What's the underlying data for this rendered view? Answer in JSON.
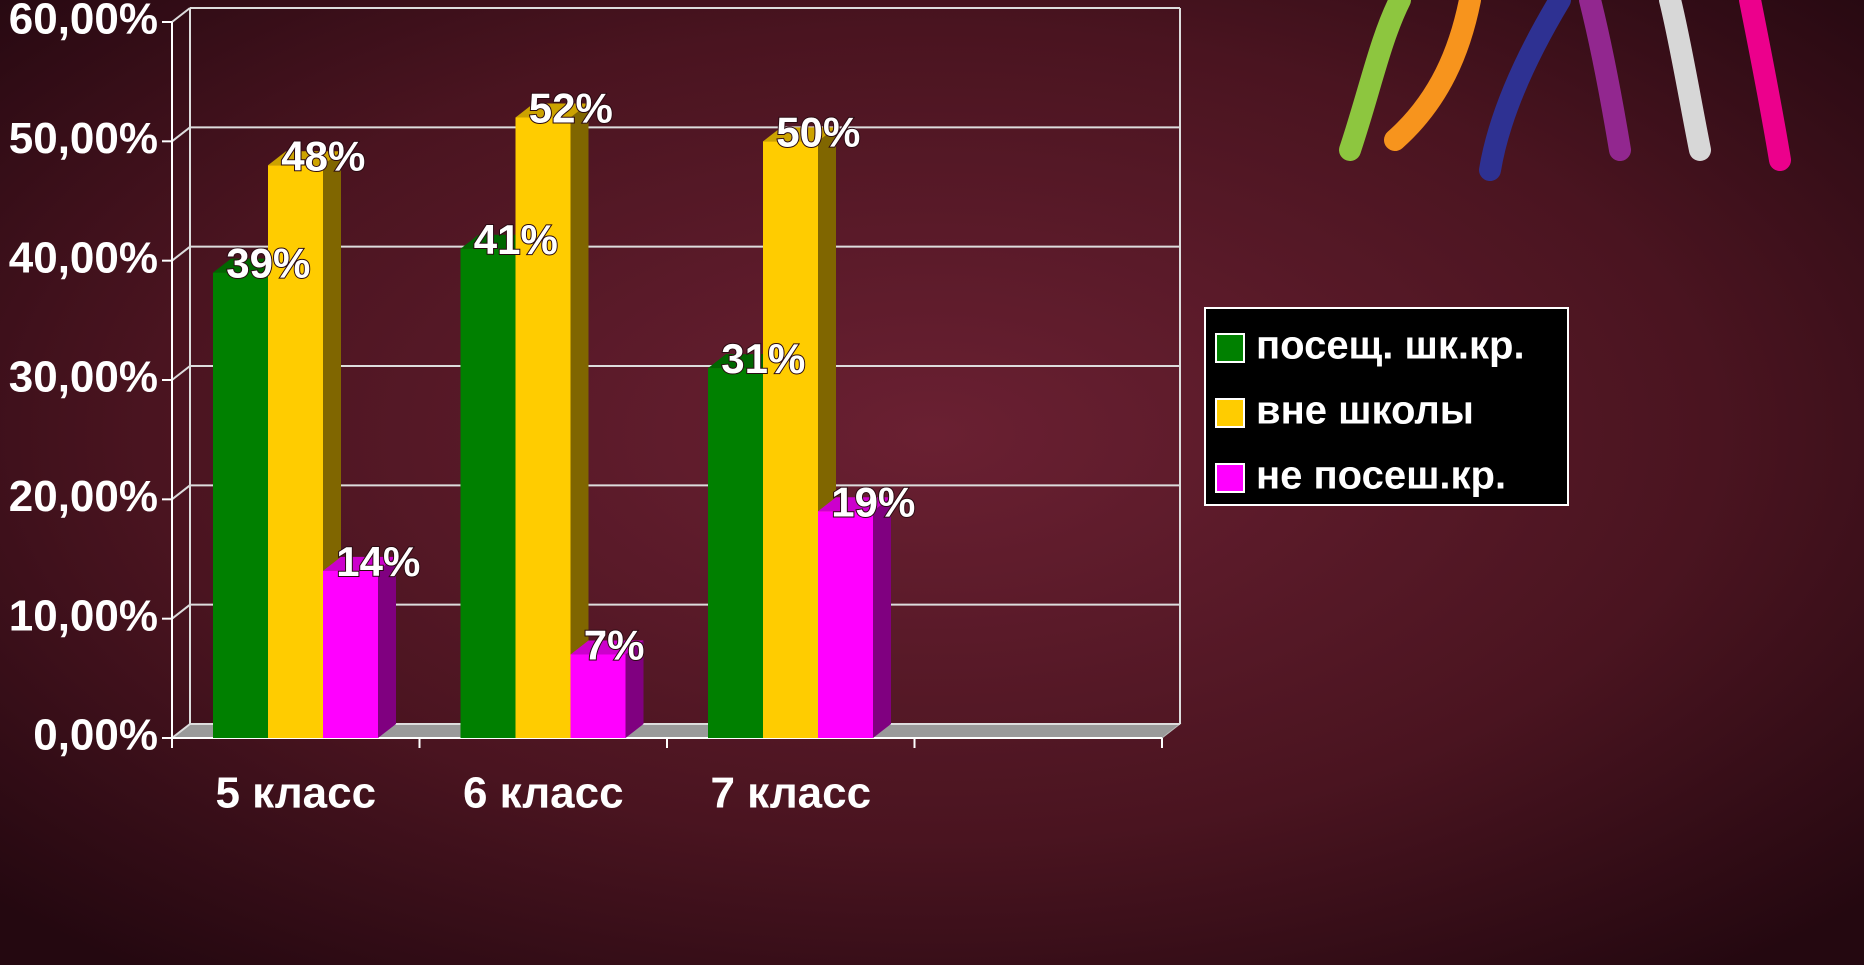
{
  "chart_data": {
    "type": "bar3d",
    "categories": [
      "5 класс",
      "6 класс",
      "7 класс"
    ],
    "series": [
      {
        "name": "посещ. шк.кр.",
        "color": "#008000",
        "values": [
          39,
          41,
          31
        ],
        "value_labels": [
          "39%",
          "41%",
          "31%"
        ]
      },
      {
        "name": "вне школы",
        "color": "#ffcc00",
        "values": [
          48,
          52,
          50
        ],
        "value_labels": [
          "48%",
          "52%",
          "50%"
        ]
      },
      {
        "name": "не посеш.кр.",
        "color": "#ff00ff",
        "values": [
          14,
          7,
          19
        ],
        "value_labels": [
          "14%",
          "7%",
          "19%"
        ]
      }
    ],
    "ylim": [
      0,
      60
    ],
    "yticks": [
      {
        "value": 0,
        "label": "0,00%"
      },
      {
        "value": 10,
        "label": "10,00%"
      },
      {
        "value": 20,
        "label": "20,00%"
      },
      {
        "value": 30,
        "label": "30,00%"
      },
      {
        "value": 40,
        "label": "40,00%"
      },
      {
        "value": 50,
        "label": "50,00%"
      },
      {
        "value": 60,
        "label": "60,00%"
      }
    ],
    "grid": true,
    "legend": "right"
  }
}
